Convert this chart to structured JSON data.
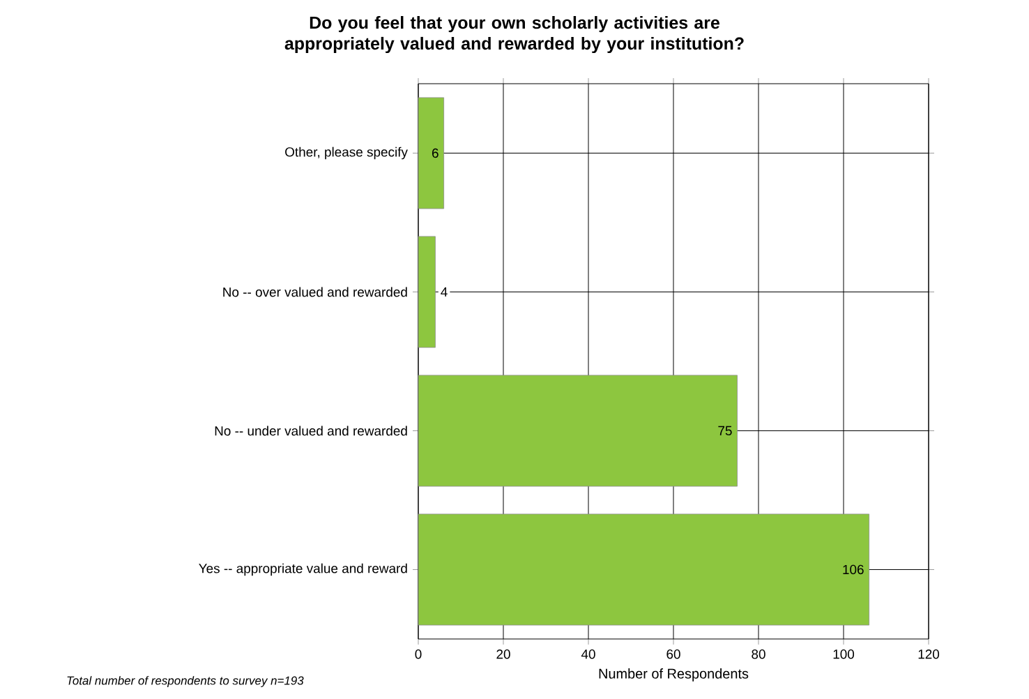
{
  "chart_data": {
    "type": "bar",
    "orientation": "horizontal",
    "title": "Do you feel that your own scholarly activities are appropriately valued and rewarded by your institution?",
    "categories": [
      "Other, please specify",
      "No -- over valued and rewarded",
      "No -- under valued and rewarded",
      "Yes -- appropriate value and reward"
    ],
    "values": [
      6,
      4,
      75,
      106
    ],
    "color": "#8dc63f",
    "xlim": [
      0,
      120
    ],
    "xticks": [
      0,
      20,
      40,
      60,
      80,
      100,
      120
    ],
    "grid": true,
    "data_labels": true,
    "xlabel": "Number of Respondents",
    "annotations": [
      "Total number of respondents to survey n=193"
    ]
  }
}
